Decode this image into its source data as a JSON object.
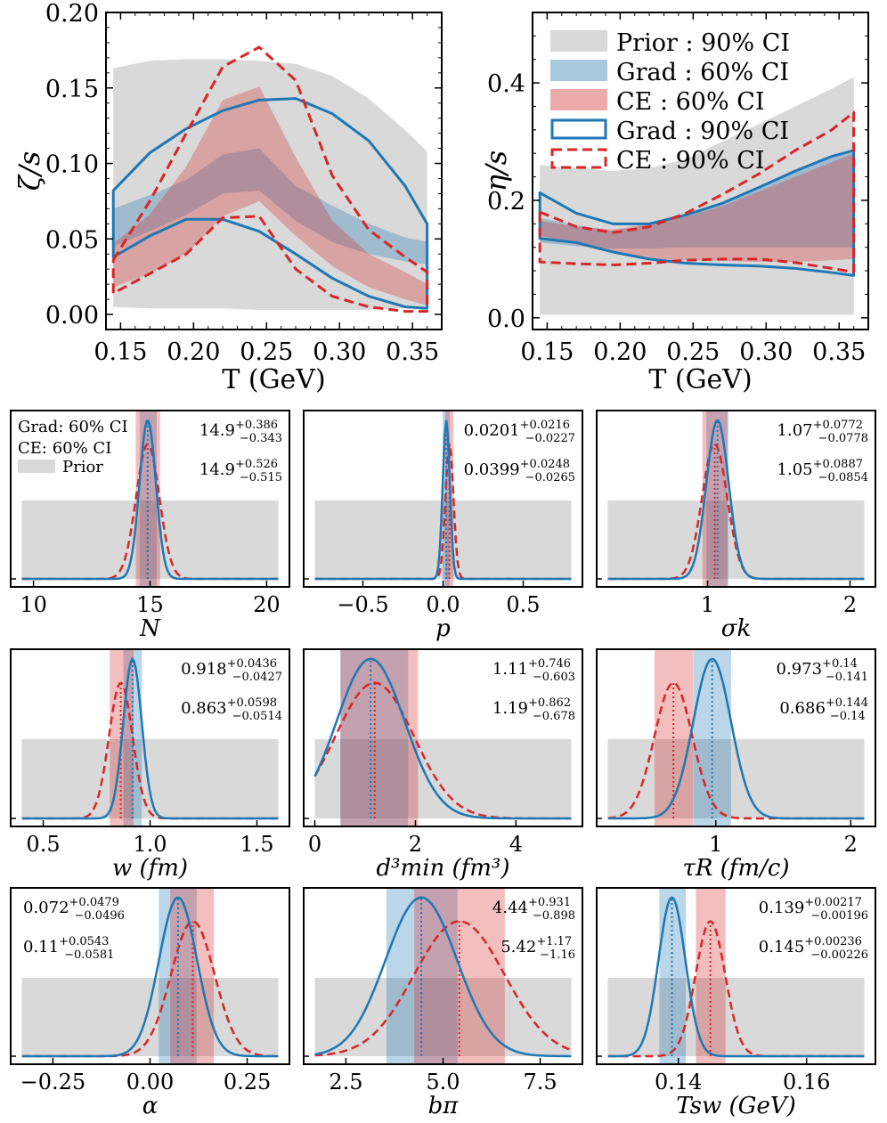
{
  "colors": {
    "grad": "#1f77b4",
    "ce": "#d62728",
    "prior": "#d9d9d9",
    "gradBand": "#a9c9e1",
    "ceBand": "#ecabab",
    "gradShade": "#98bedb",
    "ceShade": "#e99b9b"
  },
  "legend_top": {
    "items": [
      {
        "label": "Prior : 90% CI",
        "style": "prior"
      },
      {
        "label": "Grad : 60% CI",
        "style": "gradBand"
      },
      {
        "label": "CE : 60% CI",
        "style": "ceBand"
      },
      {
        "label": "Grad : 90% CI",
        "style": "gradLine"
      },
      {
        "label": "CE : 90% CI",
        "style": "ceLine"
      }
    ]
  },
  "legend_small": {
    "grad": "Grad: 60% CI",
    "ce": "CE: 60% CI",
    "prior": "Prior"
  },
  "chart_data": [
    {
      "type": "area",
      "id": "zeta",
      "ylabel": "ζ/s",
      "xlabel": "T (GeV)",
      "xlim": [
        0.14,
        0.37
      ],
      "ylim": [
        -0.01,
        0.2
      ],
      "xticks": [
        "0.15",
        "0.20",
        "0.25",
        "0.30",
        "0.35"
      ],
      "xtick_values": [
        0.15,
        0.2,
        0.25,
        0.3,
        0.35
      ],
      "yticks": [
        "0.00",
        "0.05",
        "0.10",
        "0.15",
        "0.20"
      ],
      "ytick_values": [
        0,
        0.05,
        0.1,
        0.15,
        0.2
      ],
      "T": [
        0.145,
        0.17,
        0.195,
        0.22,
        0.245,
        0.27,
        0.295,
        0.32,
        0.345,
        0.36
      ],
      "prior_lo": [
        0.005,
        0.004,
        0.004,
        0.004,
        0.003,
        0.003,
        0.003,
        0.003,
        0.004,
        0.004
      ],
      "prior_hi": [
        0.163,
        0.168,
        0.169,
        0.169,
        0.168,
        0.166,
        0.158,
        0.143,
        0.122,
        0.108
      ],
      "grad60_lo": [
        0.045,
        0.055,
        0.066,
        0.08,
        0.082,
        0.062,
        0.048,
        0.04,
        0.035,
        0.033
      ],
      "grad60_hi": [
        0.07,
        0.079,
        0.089,
        0.106,
        0.11,
        0.085,
        0.072,
        0.06,
        0.051,
        0.048
      ],
      "ce60_lo": [
        0.018,
        0.027,
        0.04,
        0.065,
        0.075,
        0.052,
        0.032,
        0.018,
        0.01,
        0.006
      ],
      "ce60_hi": [
        0.047,
        0.066,
        0.098,
        0.142,
        0.151,
        0.104,
        0.062,
        0.04,
        0.028,
        0.02
      ],
      "grad90_lo": [
        0.038,
        0.052,
        0.063,
        0.063,
        0.055,
        0.04,
        0.024,
        0.012,
        0.005,
        0.004
      ],
      "grad90_hi": [
        0.082,
        0.107,
        0.123,
        0.135,
        0.142,
        0.143,
        0.133,
        0.115,
        0.085,
        0.06
      ],
      "ce90_lo": [
        0.014,
        0.027,
        0.04,
        0.064,
        0.065,
        0.03,
        0.012,
        0.005,
        0.002,
        0.002
      ],
      "ce90_hi": [
        0.036,
        0.075,
        0.12,
        0.164,
        0.177,
        0.155,
        0.092,
        0.056,
        0.038,
        0.028
      ]
    },
    {
      "type": "area",
      "id": "eta",
      "ylabel": "η/s",
      "xlabel": "T (GeV)",
      "xlim": [
        0.14,
        0.37
      ],
      "ylim": [
        -0.02,
        0.52
      ],
      "xticks": [
        "0.15",
        "0.20",
        "0.25",
        "0.30",
        "0.35"
      ],
      "xtick_values": [
        0.15,
        0.2,
        0.25,
        0.3,
        0.35
      ],
      "yticks": [
        "0.0",
        "0.2",
        "0.4"
      ],
      "ytick_values": [
        0,
        0.2,
        0.4
      ],
      "T": [
        0.145,
        0.17,
        0.195,
        0.22,
        0.245,
        0.27,
        0.295,
        0.32,
        0.345,
        0.36
      ],
      "prior_lo": [
        0.005,
        0.005,
        0.005,
        0.005,
        0.005,
        0.005,
        0.005,
        0.005,
        0.005,
        0.005
      ],
      "prior_hi": [
        0.26,
        0.255,
        0.25,
        0.255,
        0.27,
        0.3,
        0.33,
        0.36,
        0.39,
        0.41
      ],
      "grad60_lo": [
        0.128,
        0.122,
        0.118,
        0.118,
        0.12,
        0.12,
        0.12,
        0.12,
        0.12,
        0.12
      ],
      "grad60_hi": [
        0.17,
        0.158,
        0.148,
        0.158,
        0.175,
        0.195,
        0.222,
        0.25,
        0.275,
        0.285
      ],
      "ce60_lo": [
        0.14,
        0.125,
        0.11,
        0.1,
        0.098,
        0.097,
        0.095,
        0.095,
        0.098,
        0.1
      ],
      "ce60_hi": [
        0.165,
        0.155,
        0.15,
        0.16,
        0.172,
        0.19,
        0.215,
        0.24,
        0.265,
        0.28
      ],
      "grad90_lo": [
        0.135,
        0.128,
        0.112,
        0.1,
        0.093,
        0.09,
        0.088,
        0.084,
        0.077,
        0.072
      ],
      "grad90_hi": [
        0.213,
        0.178,
        0.16,
        0.16,
        0.175,
        0.195,
        0.222,
        0.25,
        0.275,
        0.285
      ],
      "ce90_lo": [
        0.095,
        0.092,
        0.09,
        0.093,
        0.098,
        0.1,
        0.1,
        0.094,
        0.084,
        0.078
      ],
      "ce90_hi": [
        0.18,
        0.155,
        0.145,
        0.155,
        0.178,
        0.21,
        0.245,
        0.285,
        0.32,
        0.35
      ]
    },
    {
      "type": "line",
      "id": "N",
      "xlabel": "N",
      "xlim": [
        9.5,
        20.5
      ],
      "prior": [
        9.5,
        20.5
      ],
      "xticks": [
        "10",
        "15",
        "20"
      ],
      "xtick_values": [
        10,
        15,
        20
      ],
      "grad": {
        "mean": 14.9,
        "sd": 0.35,
        "ci": [
          14.557,
          15.286
        ],
        "median": 14.9,
        "label_main": "14.9",
        "label_sup": "+0.386",
        "label_sub": "−0.343"
      },
      "ce": {
        "mean": 14.9,
        "sd": 0.5,
        "ci": [
          14.385,
          15.426
        ],
        "median": 14.9,
        "label_main": "14.9",
        "label_sup": "+0.526",
        "label_sub": "−0.515"
      }
    },
    {
      "type": "line",
      "id": "p",
      "xlabel": "p",
      "xlim": [
        -0.8,
        0.8
      ],
      "prior": [
        -0.8,
        0.8
      ],
      "xticks": [
        "−0.5",
        "0.0",
        "0.5"
      ],
      "xtick_values": [
        -0.5,
        0,
        0.5
      ],
      "grad": {
        "mean": 0.0201,
        "sd": 0.022,
        "ci": [
          -0.0026,
          0.0417
        ],
        "median": 0.0201,
        "label_main": "0.0201",
        "label_sup": "+0.0216",
        "label_sub": "−0.0227"
      },
      "ce": {
        "mean": 0.0399,
        "sd": 0.025,
        "ci": [
          0.0134,
          0.0647
        ],
        "median": 0.0399,
        "label_main": "0.0399",
        "label_sup": "+0.0248",
        "label_sub": "−0.0265"
      }
    },
    {
      "type": "line",
      "id": "sigma_k",
      "xlabel": "σk",
      "xlim": [
        0.3,
        2.1
      ],
      "prior": [
        0.3,
        2.1
      ],
      "xticks": [
        "1",
        "2"
      ],
      "xtick_values": [
        1,
        2
      ],
      "grad": {
        "mean": 1.07,
        "sd": 0.078,
        "ci": [
          0.9922,
          1.1472
        ],
        "median": 1.07,
        "label_main": "1.07",
        "label_sup": "+0.0772",
        "label_sub": "−0.0778"
      },
      "ce": {
        "mean": 1.05,
        "sd": 0.088,
        "ci": [
          0.9646,
          1.1387
        ],
        "median": 1.05,
        "label_main": "1.05",
        "label_sup": "+0.0887",
        "label_sub": "−0.0854"
      }
    },
    {
      "type": "line",
      "id": "w",
      "xlabel": "w (fm)",
      "xlim": [
        0.4,
        1.6
      ],
      "prior": [
        0.4,
        1.6
      ],
      "xticks": [
        "0.5",
        "1.0",
        "1.5"
      ],
      "xtick_values": [
        0.5,
        1.0,
        1.5
      ],
      "grad": {
        "mean": 0.918,
        "sd": 0.043,
        "ci": [
          0.8753,
          0.9616
        ],
        "median": 0.918,
        "label_main": "0.918",
        "label_sup": "+0.0436",
        "label_sub": "−0.0427"
      },
      "ce": {
        "mean": 0.863,
        "sd": 0.055,
        "ci": [
          0.8116,
          0.9228
        ],
        "median": 0.863,
        "label_main": "0.863",
        "label_sup": "+0.0598",
        "label_sub": "−0.0514"
      }
    },
    {
      "type": "line",
      "id": "dmin",
      "xlabel": "d³min (fm³)",
      "xlim": [
        0,
        5.1
      ],
      "prior": [
        0,
        5.1
      ],
      "xticks": [
        "0",
        "2",
        "4"
      ],
      "xtick_values": [
        0,
        2,
        4
      ],
      "grad": {
        "mean": 1.11,
        "sd": 0.68,
        "ci": [
          0.507,
          1.856
        ],
        "median": 1.11,
        "label_main": "1.11",
        "label_sup": "+0.746",
        "label_sub": "−0.603"
      },
      "ce": {
        "mean": 1.19,
        "sd": 0.78,
        "ci": [
          0.512,
          2.052
        ],
        "median": 1.19,
        "label_main": "1.19",
        "label_sup": "+0.862",
        "label_sub": "−0.678"
      }
    },
    {
      "type": "line",
      "id": "tauR",
      "xlabel": "τR (fm/c)",
      "xlim": [
        0.2,
        2.1
      ],
      "prior": [
        0.2,
        2.1
      ],
      "xticks": [
        "1",
        "2"
      ],
      "xtick_values": [
        1,
        2
      ],
      "grad": {
        "mean": 0.973,
        "sd": 0.14,
        "ci": [
          0.832,
          1.113
        ],
        "median": 0.973,
        "label_main": "0.973",
        "label_sup": "+0.14",
        "label_sub": "−0.141"
      },
      "ce": {
        "mean": 0.686,
        "sd": 0.14,
        "ci": [
          0.546,
          0.83
        ],
        "median": 0.686,
        "label_main": "0.686",
        "label_sup": "+0.144",
        "label_sub": "−0.14"
      }
    },
    {
      "type": "line",
      "id": "alpha",
      "xlabel": "α",
      "xlim": [
        -0.33,
        0.33
      ],
      "prior": [
        -0.33,
        0.33
      ],
      "xticks": [
        "−0.25",
        "0.00",
        "0.25"
      ],
      "xtick_values": [
        -0.25,
        0,
        0.25
      ],
      "grad": {
        "mean": 0.072,
        "sd": 0.049,
        "ci": [
          0.0224,
          0.1199
        ],
        "median": 0.072,
        "label_main": "0.072",
        "label_sup": "+0.0479",
        "label_sub": "−0.0496"
      },
      "ce": {
        "mean": 0.11,
        "sd": 0.056,
        "ci": [
          0.0519,
          0.1643
        ],
        "median": 0.11,
        "label_main": "0.11",
        "label_sup": "+0.0543",
        "label_sub": "−0.0581"
      }
    },
    {
      "type": "line",
      "id": "bpi",
      "xlabel": "bπ",
      "xlim": [
        1.7,
        8.3
      ],
      "prior": [
        1.7,
        8.3
      ],
      "xticks": [
        "2.5",
        "5.0",
        "7.5"
      ],
      "xtick_values": [
        2.5,
        5.0,
        7.5
      ],
      "grad": {
        "mean": 4.44,
        "sd": 0.92,
        "ci": [
          3.542,
          5.371
        ],
        "median": 4.44,
        "label_main": "4.44",
        "label_sup": "+0.931",
        "label_sub": "−0.898"
      },
      "ce": {
        "mean": 5.42,
        "sd": 1.16,
        "ci": [
          4.26,
          6.59
        ],
        "median": 5.42,
        "label_main": "5.42",
        "label_sup": "+1.17",
        "label_sub": "−1.16"
      }
    },
    {
      "type": "line",
      "id": "Tsw",
      "xlabel": "Tsw (GeV)",
      "xlim": [
        0.129,
        0.169
      ],
      "prior": [
        0.129,
        0.169
      ],
      "xticks": [
        "0.14",
        "0.16"
      ],
      "xtick_values": [
        0.14,
        0.16
      ],
      "grad": {
        "mean": 0.139,
        "sd": 0.0021,
        "ci": [
          0.13704,
          0.14117
        ],
        "median": 0.139,
        "label_main": "0.139",
        "label_sup": "+0.00217",
        "label_sub": "−0.00196"
      },
      "ce": {
        "mean": 0.145,
        "sd": 0.0023,
        "ci": [
          0.14274,
          0.14736
        ],
        "median": 0.145,
        "label_main": "0.145",
        "label_sup": "+0.00236",
        "label_sub": "−0.00226"
      }
    }
  ]
}
